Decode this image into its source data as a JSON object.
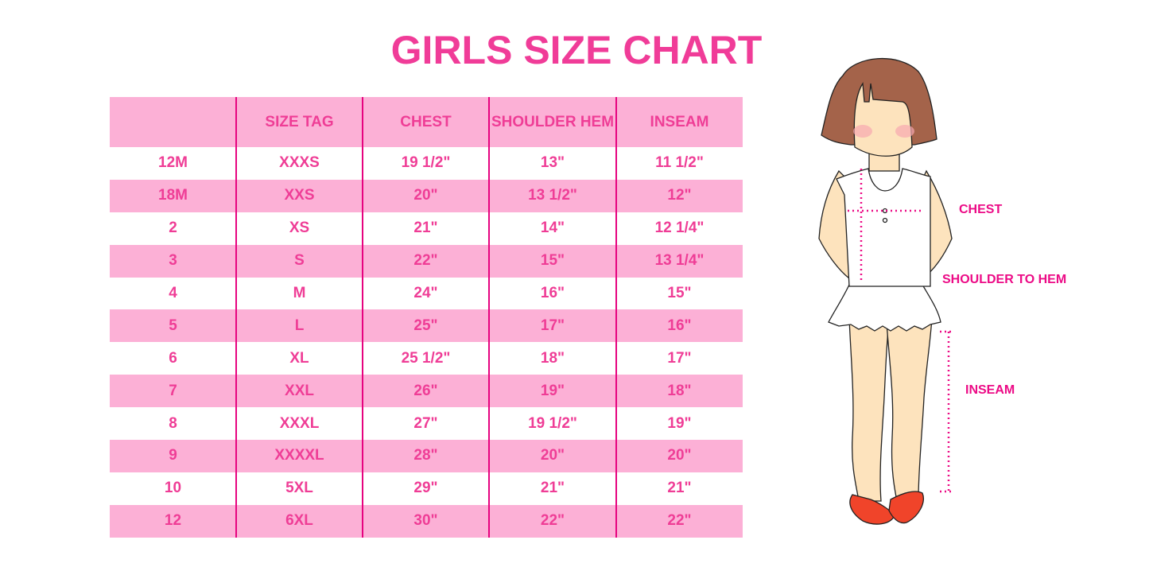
{
  "title": "GIRLS SIZE CHART",
  "colors": {
    "accent": "#ec0b86",
    "row_fill": "#fcb0d6",
    "text": "#ef3d96"
  },
  "table": {
    "headers": [
      "",
      "SIZE TAG",
      "CHEST",
      "SHOULDER HEM",
      "INSEAM"
    ],
    "rows": [
      [
        "12M",
        "XXXS",
        "19 1/2\"",
        "13\"",
        "11 1/2\""
      ],
      [
        "18M",
        "XXS",
        "20\"",
        "13 1/2\"",
        "12\""
      ],
      [
        "2",
        "XS",
        "21\"",
        "14\"",
        "12 1/4\""
      ],
      [
        "3",
        "S",
        "22\"",
        "15\"",
        "13 1/4\""
      ],
      [
        "4",
        "M",
        "24\"",
        "16\"",
        "15\""
      ],
      [
        "5",
        "L",
        "25\"",
        "17\"",
        "16\""
      ],
      [
        "6",
        "XL",
        "25 1/2\"",
        "18\"",
        "17\""
      ],
      [
        "7",
        "XXL",
        "26\"",
        "19\"",
        "18\""
      ],
      [
        "8",
        "XXXL",
        "27\"",
        "19 1/2\"",
        "19\""
      ],
      [
        "9",
        "XXXXL",
        "28\"",
        "20\"",
        "20\""
      ],
      [
        "10",
        "5XL",
        "29\"",
        "21\"",
        "21\""
      ],
      [
        "12",
        "6XL",
        "30\"",
        "22\"",
        "22\""
      ]
    ]
  },
  "illustration": {
    "labels": {
      "chest": "CHEST",
      "shoulder_to_hem": "SHOULDER TO HEM",
      "inseam": "INSEAM"
    }
  }
}
